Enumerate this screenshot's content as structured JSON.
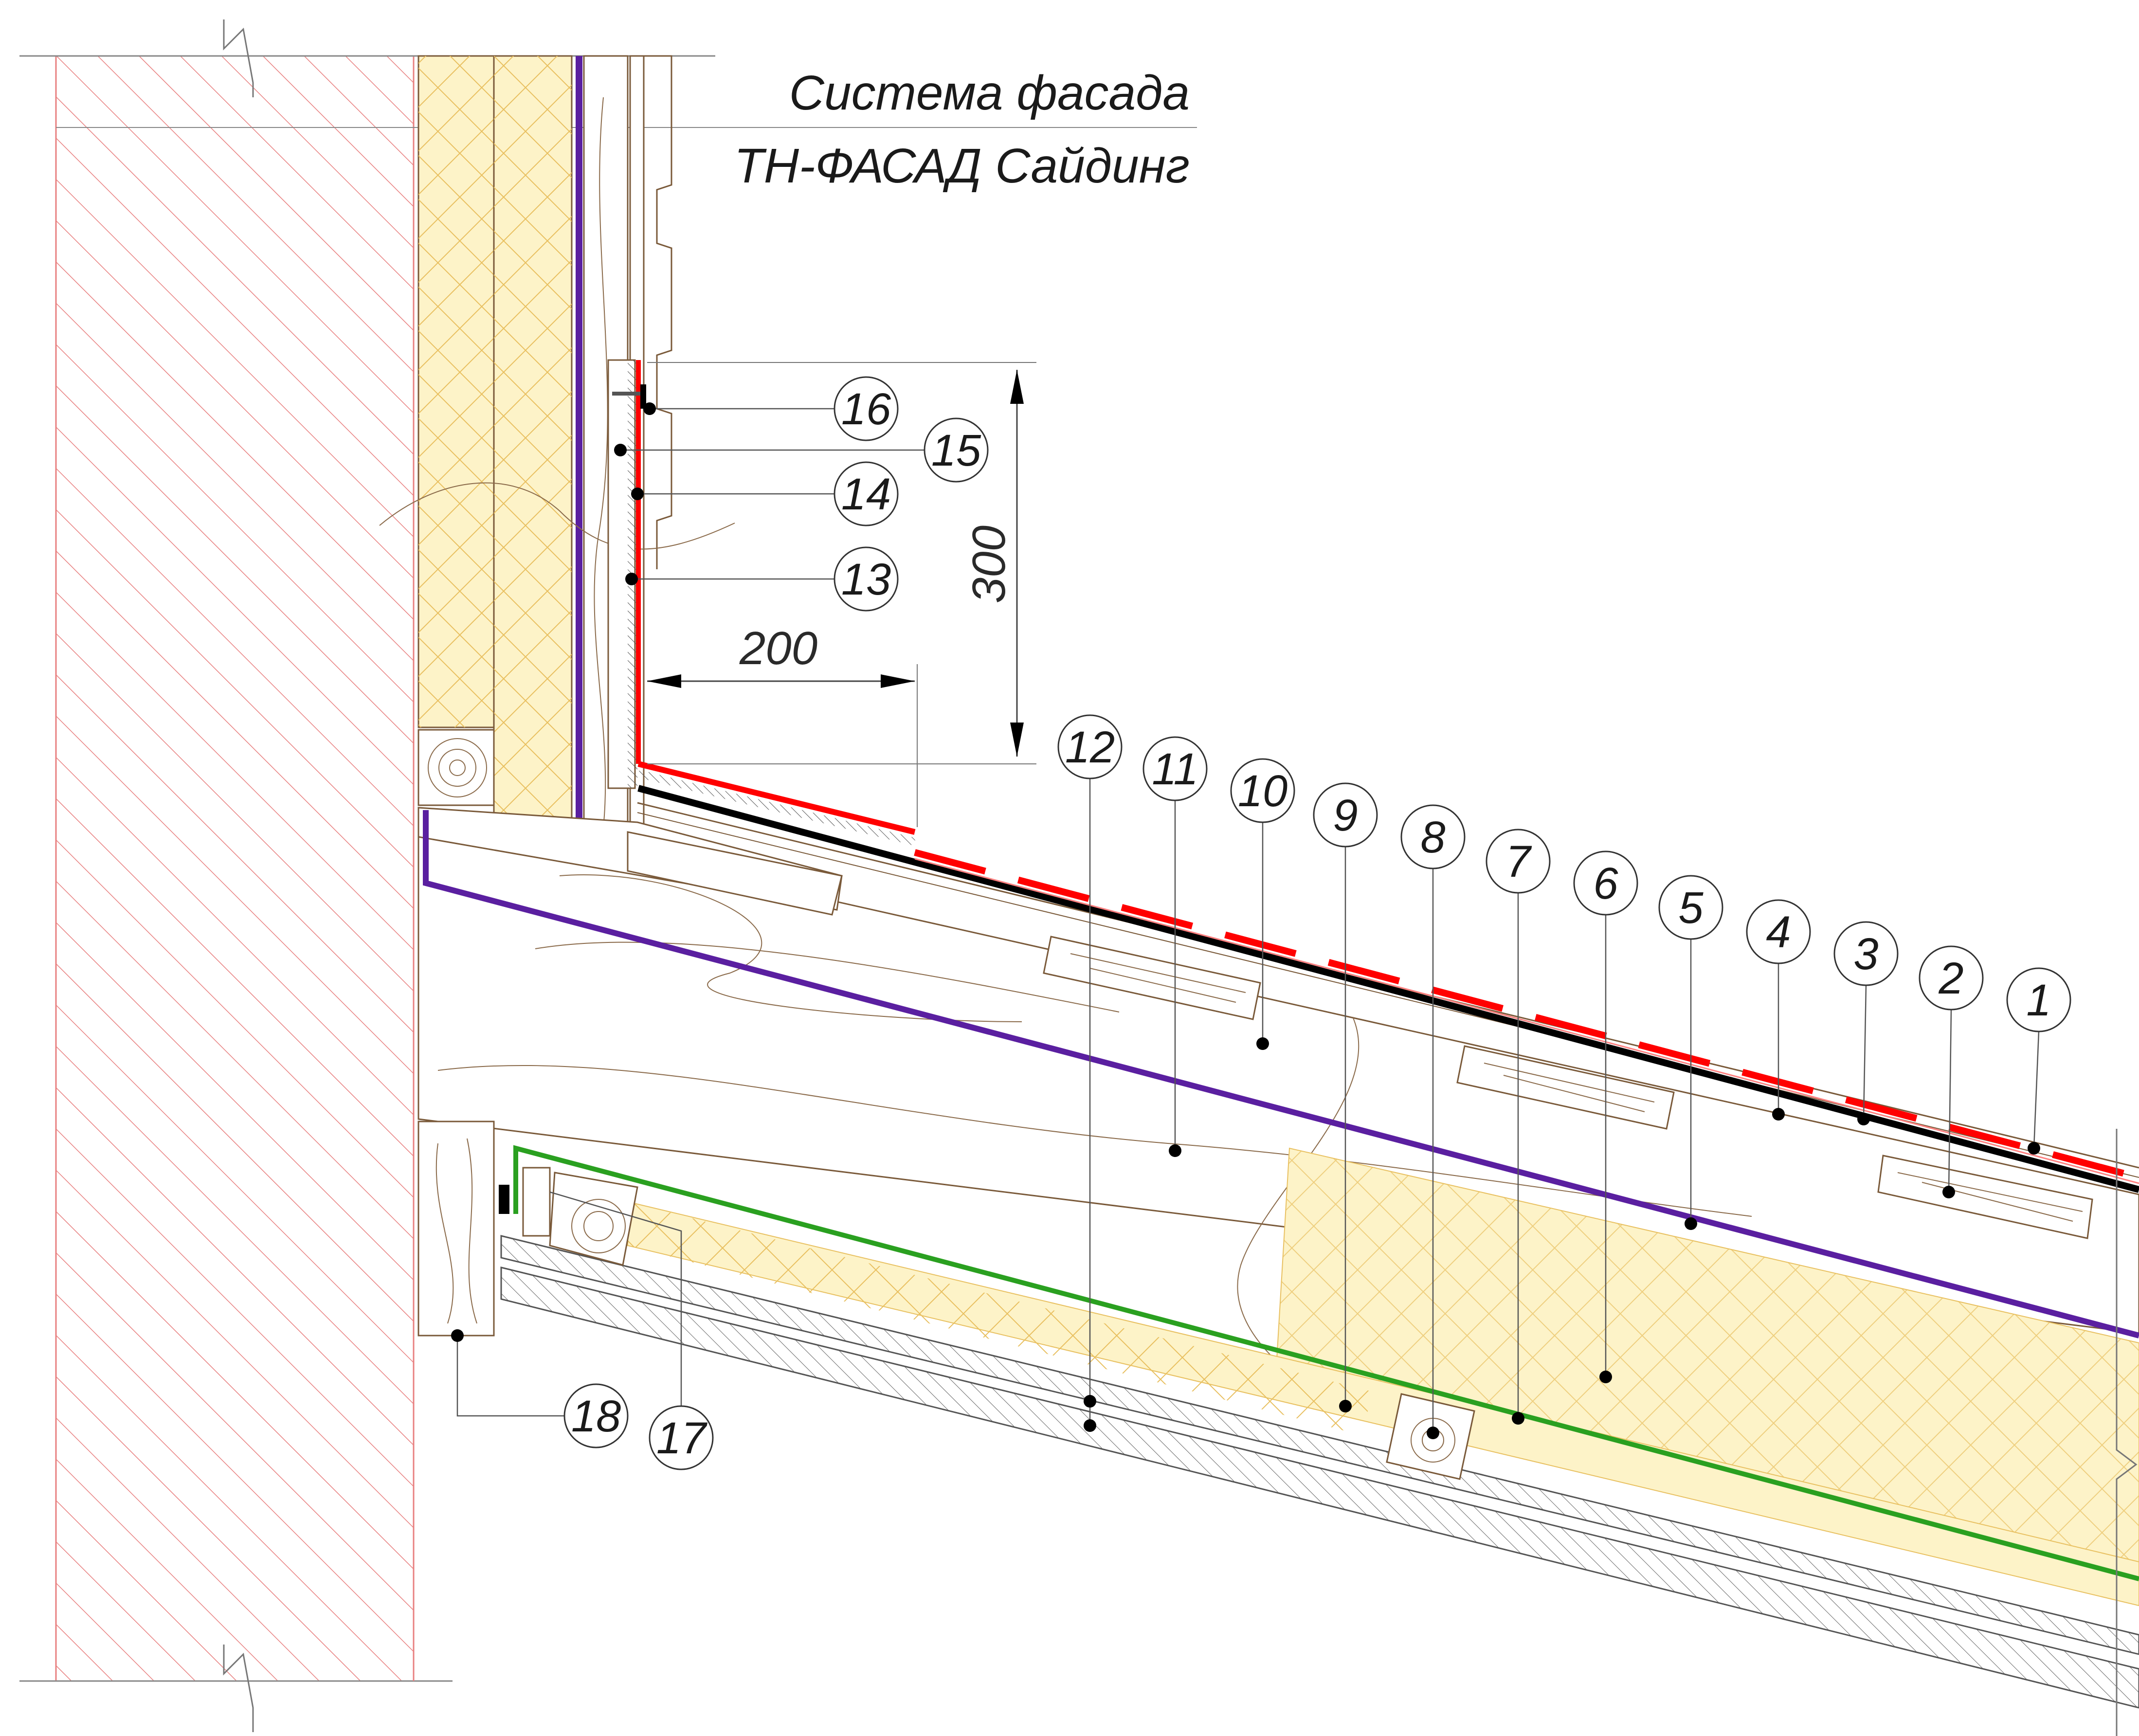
{
  "title": {
    "line1": "Система фасада",
    "line2": "ТН-ФАСАД Сайдинг"
  },
  "dimensions": {
    "vertical": "300",
    "horizontal": "200"
  },
  "callouts": [
    {
      "label": "1"
    },
    {
      "label": "2"
    },
    {
      "label": "3"
    },
    {
      "label": "4"
    },
    {
      "label": "5"
    },
    {
      "label": "6"
    },
    {
      "label": "7"
    },
    {
      "label": "8"
    },
    {
      "label": "9"
    },
    {
      "label": "10"
    },
    {
      "label": "11"
    },
    {
      "label": "12"
    },
    {
      "label": "13"
    },
    {
      "label": "14"
    },
    {
      "label": "15"
    },
    {
      "label": "16"
    },
    {
      "label": "17"
    },
    {
      "label": "18"
    }
  ],
  "colors": {
    "wall_hatch": "#e88080",
    "wood": "#7a5a3a",
    "insulation": "#fdf3c8",
    "vapor_barrier": "#5a1fa0",
    "membrane_green": "#2aa020",
    "flashing_red": "#ff0000",
    "roof_black": "#000000"
  }
}
